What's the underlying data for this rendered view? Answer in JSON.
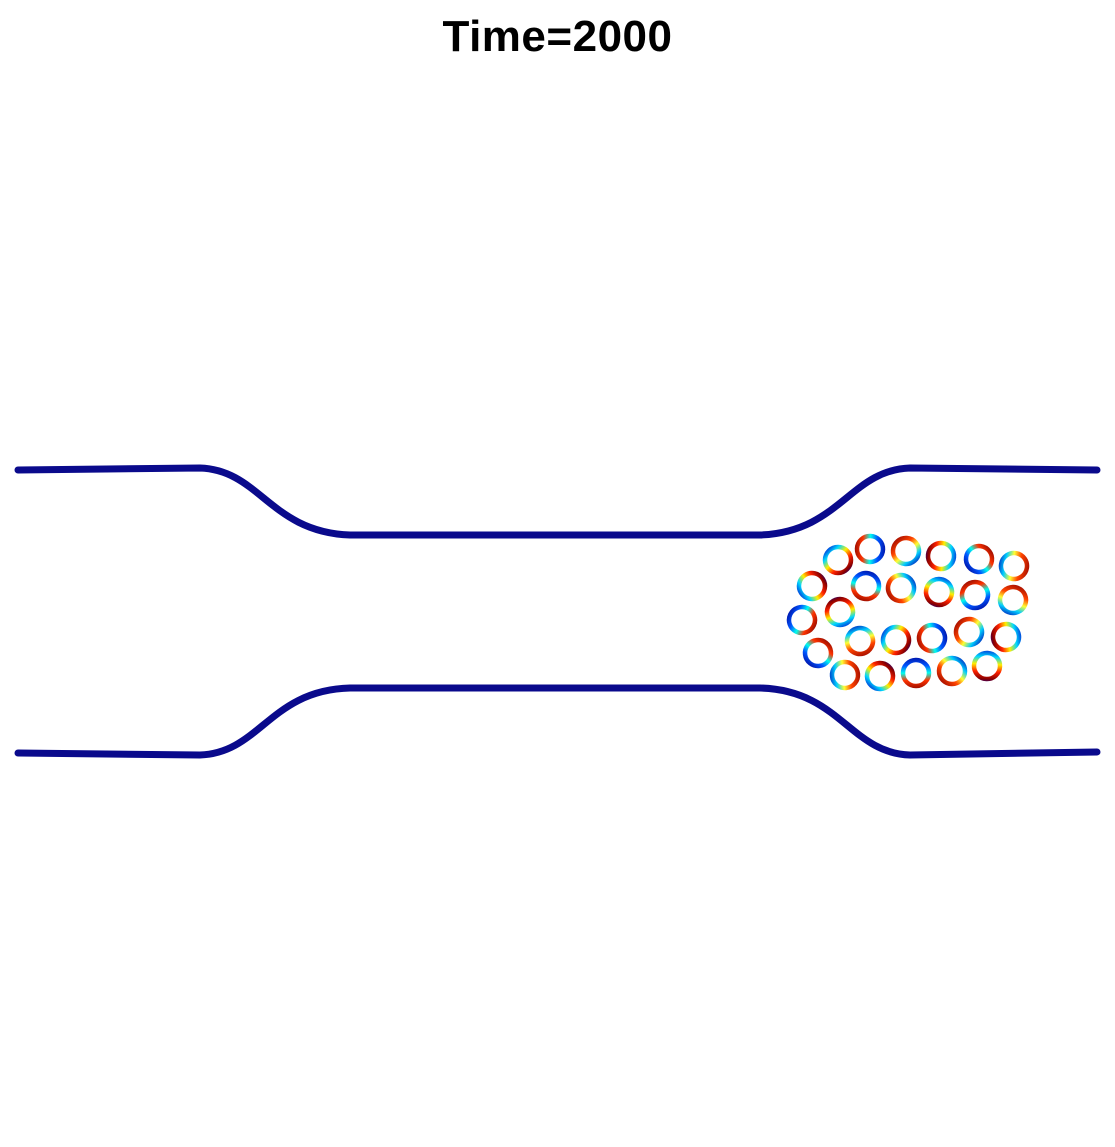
{
  "figure": {
    "title": "Time=2000"
  },
  "colors": {
    "wall": "#0a0a8c",
    "colormap": [
      "#00008f",
      "#0000ff",
      "#00ffff",
      "#ffff00",
      "#ff0000",
      "#800000"
    ]
  }
}
